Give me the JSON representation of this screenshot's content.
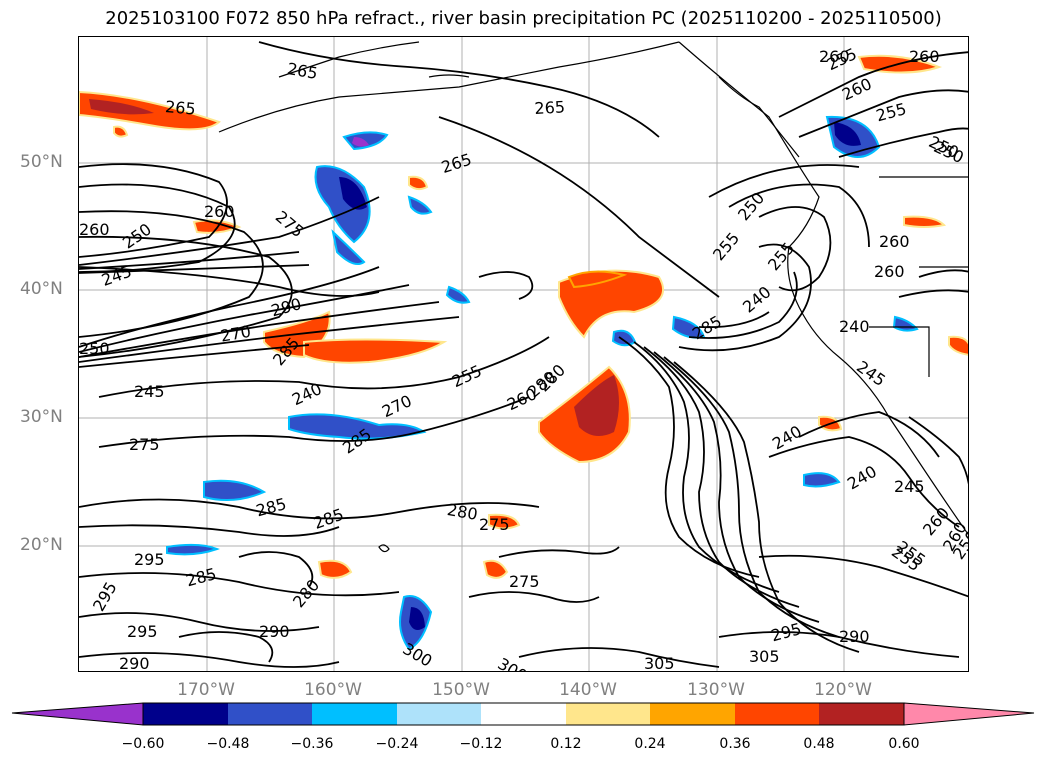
{
  "title": "2025103100 F072 850 hPa refract., river basin precipitation PC (2025110200 - 2025110500)",
  "lat_labels": [
    "50°N",
    "40°N",
    "30°N",
    "20°N"
  ],
  "lon_labels": [
    "170°W",
    "160°W",
    "150°W",
    "140°W",
    "130°W",
    "120°W"
  ],
  "colorbar": {
    "ticks": [
      "−0.60",
      "−0.48",
      "−0.36",
      "−0.24",
      "−0.12",
      "0.12",
      "0.24",
      "0.36",
      "0.48",
      "0.60"
    ],
    "colors": [
      "#9932cc",
      "#00008b",
      "#3050c8",
      "#00bfff",
      "#aee2fa",
      "#ffffff",
      "#ffe68c",
      "#ffa500",
      "#ff4500",
      "#b22222",
      "#ff88aa"
    ]
  },
  "contour_labels": [
    {
      "text": "265",
      "name": "contour-label-265-a"
    },
    {
      "text": "265",
      "name": "contour-label-265-b"
    },
    {
      "text": "265",
      "name": "contour-label-265-c"
    },
    {
      "text": "265",
      "name": "contour-label-265-d"
    },
    {
      "text": "260",
      "name": "contour-label-260-a"
    },
    {
      "text": "260",
      "name": "contour-label-260-b"
    },
    {
      "text": "260",
      "name": "contour-label-260-c"
    },
    {
      "text": "255",
      "name": "contour-label-255-a"
    },
    {
      "text": "255",
      "name": "contour-label-255-b"
    },
    {
      "text": "250",
      "name": "contour-label-250-a"
    },
    {
      "text": "275",
      "name": "contour-label-275-a"
    },
    {
      "text": "260",
      "name": "contour-label-260-d"
    },
    {
      "text": "250",
      "name": "contour-label-250-b"
    },
    {
      "text": "245",
      "name": "contour-label-245-a"
    },
    {
      "text": "290",
      "name": "contour-label-290-a"
    },
    {
      "text": "270",
      "name": "contour-label-270-a"
    },
    {
      "text": "250",
      "name": "contour-label-250-c"
    },
    {
      "text": "285",
      "name": "contour-label-285-a"
    },
    {
      "text": "245",
      "name": "contour-label-245-b"
    },
    {
      "text": "240",
      "name": "contour-label-240-a"
    },
    {
      "text": "255",
      "name": "contour-label-255-c"
    },
    {
      "text": "270",
      "name": "contour-label-270-b"
    },
    {
      "text": "275",
      "name": "contour-label-275-b"
    },
    {
      "text": "260",
      "name": "contour-label-260-e"
    },
    {
      "text": "285",
      "name": "contour-label-285-b"
    },
    {
      "text": "280",
      "name": "contour-label-280-a"
    },
    {
      "text": "285",
      "name": "contour-label-285-c"
    },
    {
      "text": "280",
      "name": "contour-label-280-b"
    },
    {
      "text": "285",
      "name": "contour-label-285-d"
    },
    {
      "text": "275",
      "name": "contour-label-275-c"
    },
    {
      "text": "295",
      "name": "contour-label-295-a"
    },
    {
      "text": "285",
      "name": "contour-label-285-e"
    },
    {
      "text": "280",
      "name": "contour-label-280-c"
    },
    {
      "text": "275",
      "name": "contour-label-275-d"
    },
    {
      "text": "290",
      "name": "contour-label-290-b"
    },
    {
      "text": "295",
      "name": "contour-label-295-b"
    },
    {
      "text": "295",
      "name": "contour-label-295-c"
    },
    {
      "text": "290",
      "name": "contour-label-290-c"
    },
    {
      "text": "300",
      "name": "contour-label-300-a"
    },
    {
      "text": "300",
      "name": "contour-label-300-b"
    },
    {
      "text": "305",
      "name": "contour-label-305-a"
    },
    {
      "text": "305",
      "name": "contour-label-305-b"
    },
    {
      "text": "295",
      "name": "contour-label-295-d"
    },
    {
      "text": "290",
      "name": "contour-label-290-d"
    },
    {
      "text": "260",
      "name": "contour-label-260-f"
    },
    {
      "text": "255",
      "name": "contour-label-255-d"
    },
    {
      "text": "250",
      "name": "contour-label-250-d"
    },
    {
      "text": "250",
      "name": "contour-label-250-e"
    },
    {
      "text": "255",
      "name": "contour-label-255-e"
    },
    {
      "text": "240",
      "name": "contour-label-240-b"
    },
    {
      "text": "285",
      "name": "contour-label-285-f"
    },
    {
      "text": "280",
      "name": "contour-label-280-d"
    },
    {
      "text": "245",
      "name": "contour-label-245-c"
    },
    {
      "text": "240",
      "name": "contour-label-240-c"
    },
    {
      "text": "240",
      "name": "contour-label-240-d"
    },
    {
      "text": "245",
      "name": "contour-label-245-d"
    },
    {
      "text": "255",
      "name": "contour-label-255-f"
    },
    {
      "text": "260",
      "name": "contour-label-260-g"
    },
    {
      "text": "250",
      "name": "contour-label-250-f"
    },
    {
      "text": "255",
      "name": "contour-label-255-g"
    },
    {
      "text": "260",
      "name": "contour-label-260-h"
    },
    {
      "text": "260",
      "name": "contour-label-260-i"
    },
    {
      "text": "260",
      "name": "contour-label-260-j"
    },
    {
      "text": "240",
      "name": "contour-label-240-e"
    }
  ]
}
